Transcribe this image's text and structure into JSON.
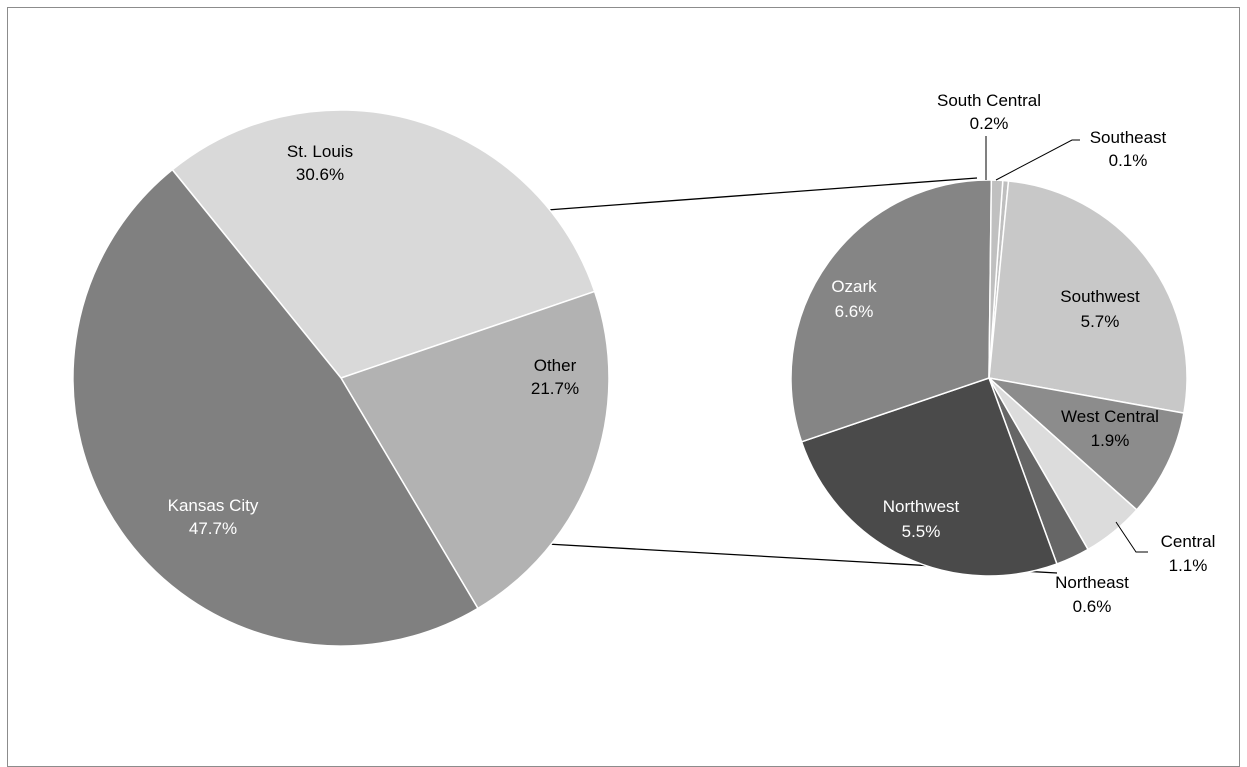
{
  "chart_data": [
    {
      "type": "pie",
      "slices": [
        {
          "label": "St. Louis",
          "value": 30.6,
          "value_label": "30.6%",
          "color": "#d9d9d9"
        },
        {
          "label": "Other",
          "value": 21.7,
          "value_label": "21.7%",
          "color": "#b2b2b2"
        },
        {
          "label": "Kansas City",
          "value": 47.7,
          "value_label": "47.7%",
          "color": "#808080"
        }
      ]
    },
    {
      "type": "pie",
      "slices": [
        {
          "label": "Southeast",
          "value": 0.1,
          "value_label": "0.1%",
          "color": "#bfbfbf"
        },
        {
          "label": "Southwest",
          "value": 5.7,
          "value_label": "5.7%",
          "color": "#c8c8c8"
        },
        {
          "label": "West Central",
          "value": 1.9,
          "value_label": "1.9%",
          "color": "#8c8c8c"
        },
        {
          "label": "Central",
          "value": 1.1,
          "value_label": "1.1%",
          "color": "#dcdcdc"
        },
        {
          "label": "Northeast",
          "value": 0.6,
          "value_label": "0.6%",
          "color": "#666666"
        },
        {
          "label": "Northwest",
          "value": 5.5,
          "value_label": "5.5%",
          "color": "#4a4a4a"
        },
        {
          "label": "Ozark",
          "value": 6.6,
          "value_label": "6.6%",
          "color": "#858585"
        },
        {
          "label": "South Central",
          "value": 0.2,
          "value_label": "0.2%",
          "color": "#c0c0c0"
        }
      ]
    }
  ]
}
